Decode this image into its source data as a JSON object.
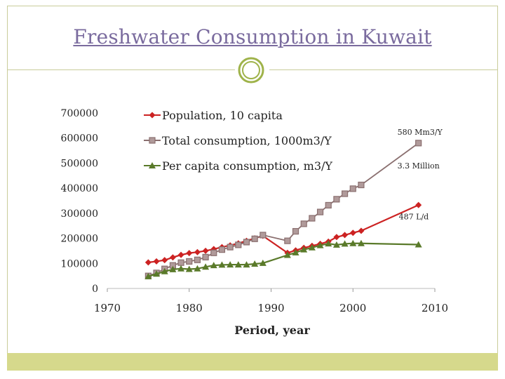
{
  "slide": {
    "title": "Freshwater Consumption in Kuwait",
    "colors": {
      "title": "#7a6b9e",
      "frame": "#c9cc9a",
      "footer": "#d6d98c",
      "ornament": "#9fb34a"
    },
    "ornament_icon": "double-ring-ornament"
  },
  "chart_data": {
    "type": "line",
    "xlabel": "Period, year",
    "ylabel": "",
    "xlim": [
      1970,
      2010
    ],
    "ylim": [
      0,
      700000
    ],
    "x_ticks": [
      "1970",
      "1980",
      "1990",
      "2000",
      "2010"
    ],
    "y_ticks": [
      "0",
      "100000",
      "200000",
      "300000",
      "400000",
      "500000",
      "600000",
      "700000"
    ],
    "grid": false,
    "legend_position": "top-left",
    "series": [
      {
        "name": "Population, 10 capita",
        "color": "#cc2222",
        "marker": "diamond",
        "x": [
          1975,
          1976,
          1977,
          1978,
          1979,
          1980,
          1981,
          1982,
          1983,
          1984,
          1985,
          1986,
          1987,
          1988,
          1989,
          1992,
          1993,
          1994,
          1995,
          1996,
          1997,
          1998,
          1999,
          2000,
          2001,
          2008
        ],
        "y": [
          104000,
          108000,
          113000,
          124000,
          134000,
          141000,
          145000,
          150000,
          157000,
          165000,
          172000,
          180000,
          190000,
          200000,
          210000,
          142000,
          152000,
          162000,
          170000,
          178000,
          187000,
          205000,
          213000,
          222000,
          230000,
          333000
        ]
      },
      {
        "name": "Total consumption, 1000m3/Y",
        "color": "#8a6f6f",
        "marker": "square",
        "x": [
          1975,
          1976,
          1977,
          1978,
          1979,
          1980,
          1981,
          1982,
          1983,
          1984,
          1985,
          1986,
          1987,
          1988,
          1989,
          1992,
          1993,
          1994,
          1995,
          1996,
          1997,
          1998,
          1999,
          2000,
          2001,
          2008
        ],
        "y": [
          50000,
          62000,
          78000,
          92000,
          103000,
          108000,
          114000,
          125000,
          142000,
          155000,
          165000,
          174000,
          185000,
          198000,
          213000,
          190000,
          228000,
          258000,
          280000,
          305000,
          332000,
          356000,
          378000,
          398000,
          413000,
          580000
        ]
      },
      {
        "name": "Per capita consumption, m3/Y",
        "color": "#5a7a2a",
        "marker": "triangle",
        "x": [
          1975,
          1976,
          1977,
          1978,
          1979,
          1980,
          1981,
          1982,
          1983,
          1984,
          1985,
          1986,
          1987,
          1988,
          1989,
          1992,
          1993,
          1994,
          1995,
          1996,
          1997,
          1998,
          1999,
          2000,
          2001,
          2008
        ],
        "y": [
          48000,
          58000,
          68000,
          76000,
          79000,
          77000,
          79000,
          86000,
          92000,
          94000,
          95000,
          95000,
          95000,
          98000,
          101000,
          133000,
          143000,
          155000,
          163000,
          172000,
          179000,
          174000,
          178000,
          180000,
          180000,
          175000
        ]
      }
    ],
    "annotations": [
      {
        "text": "580 Mm3/Y",
        "series": 1
      },
      {
        "text": "3.3 Million",
        "series": 0
      },
      {
        "text": "487 L/d",
        "series": 2
      }
    ]
  }
}
